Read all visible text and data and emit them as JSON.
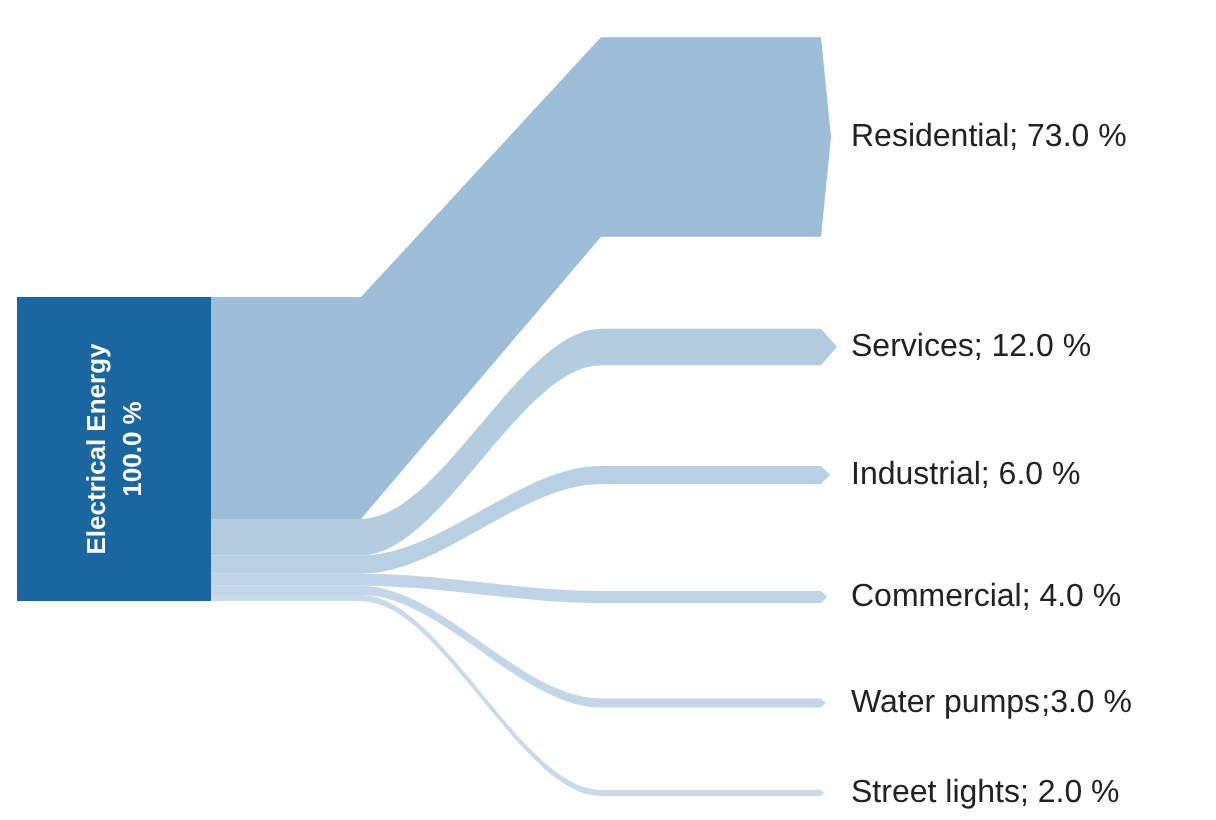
{
  "chart_data": {
    "type": "other",
    "title": "Electrical Energy",
    "annotations": [
      "100.0 %"
    ],
    "categories": [
      "Residential",
      "Services",
      "Industrial",
      "Commercial",
      "Water pumps",
      "Street lights"
    ],
    "values": [
      73.0,
      12.0,
      6.0,
      4.0,
      3.0,
      2.0
    ],
    "value_labels": [
      "; 73.0 %",
      "; 12.0 %",
      "; 6.0 %",
      "; 4.0 %",
      ";3.0 %",
      "; 2.0 %"
    ],
    "color": "#1a66a0",
    "colors": [
      "#9dbdd8",
      "#b3cce0",
      "#b9d0e3",
      "#bfd4e6",
      "#c3d7e8",
      "#c9dbea"
    ]
  }
}
